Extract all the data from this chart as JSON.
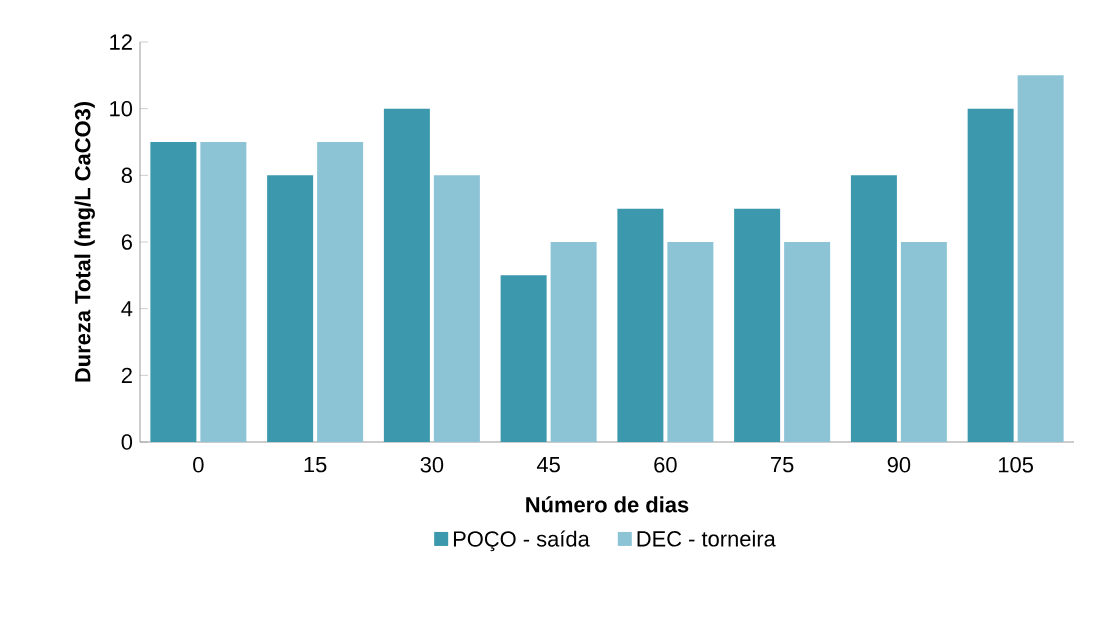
{
  "chart_data": {
    "type": "bar",
    "xlabel": "Número de dias",
    "ylabel": "Dureza Total (mg/L CaCO3)",
    "categories": [
      "0",
      "15",
      "30",
      "45",
      "60",
      "75",
      "90",
      "105"
    ],
    "series": [
      {
        "name": "POÇO - saída",
        "color": "#3b98ad",
        "values": [
          9,
          8,
          10,
          5,
          7,
          7,
          8,
          10
        ]
      },
      {
        "name": "DEC - torneira",
        "color": "#8cc4d6",
        "values": [
          9,
          9,
          8,
          6,
          6,
          6,
          6,
          11
        ]
      }
    ],
    "ylim": [
      0,
      12
    ],
    "yticks": [
      0,
      2,
      4,
      6,
      8,
      10,
      12
    ],
    "grid": false,
    "legend": "bottom"
  }
}
